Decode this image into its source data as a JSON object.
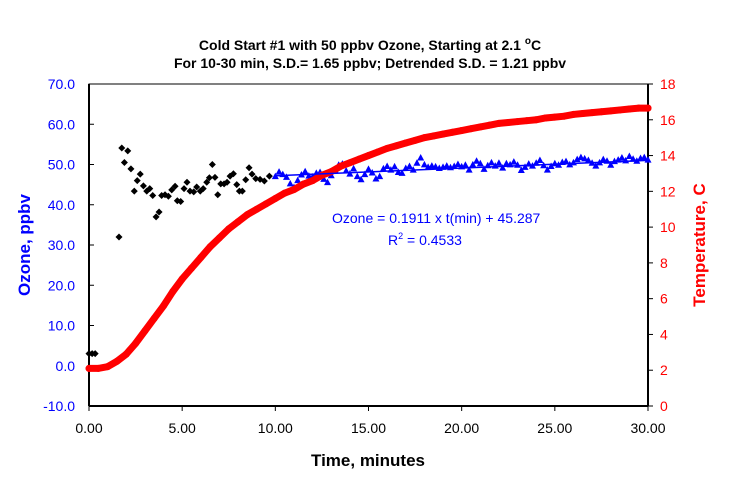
{
  "chart_data": {
    "type": "scatter",
    "title_line1": "Cold Start #1 with 50 ppbv Ozone, Starting at 2.1 ",
    "title_deg": "o",
    "title_unit": "C",
    "title_line2": "For 10-30 min, S.D.= 1.65 ppbv; Detrended  S.D. = 1.21 ppbv",
    "xlabel": "Time, minutes",
    "ylabel_left": "Ozone, ppbv",
    "ylabel_right": "Temperature, C",
    "xlim": [
      0,
      30
    ],
    "ylim_left": [
      -10,
      70
    ],
    "ylim_right": [
      0,
      18
    ],
    "x_ticks": [
      "0.00",
      "5.00",
      "10.00",
      "15.00",
      "20.00",
      "25.00",
      "30.00"
    ],
    "y_left_ticks": [
      "-10.0",
      "0.0",
      "10.0",
      "20.0",
      "30.0",
      "40.0",
      "50.0",
      "60.0",
      "70.0"
    ],
    "y_right_ticks": [
      "0",
      "2",
      "4",
      "6",
      "8",
      "10",
      "12",
      "14",
      "16",
      "18"
    ],
    "colors": {
      "ozone_early": "#000000",
      "ozone_fit": "#0000ff",
      "temperature": "#ff0000",
      "left_axis": "#0000ff",
      "right_axis": "#ff0000"
    },
    "trendline": {
      "slope": 0.1911,
      "intercept": 45.287,
      "x_range": [
        10,
        30
      ],
      "equation": "Ozone = 0.1911 x t(min) + 45.287",
      "r2_label": "R",
      "r2_sup": "2",
      "r2_value": " = 0.4533"
    },
    "series": [
      {
        "axis": "left",
        "marker": "diamond",
        "color": "#000000",
        "points": [
          [
            0,
            3.0
          ],
          [
            0.17,
            3.0
          ],
          [
            0.33,
            3.0
          ],
          [
            1.61,
            32.0
          ],
          [
            1.76,
            54.1
          ],
          [
            1.9,
            50.5
          ],
          [
            2.08,
            53.4
          ],
          [
            2.25,
            48.9
          ],
          [
            2.43,
            43.4
          ],
          [
            2.59,
            46.0
          ],
          [
            2.75,
            47.6
          ],
          [
            2.92,
            44.7
          ],
          [
            3.1,
            43.4
          ],
          [
            3.26,
            44.0
          ],
          [
            3.42,
            42.3
          ],
          [
            3.6,
            37.0
          ],
          [
            3.76,
            38.2
          ],
          [
            3.9,
            42.3
          ],
          [
            4.08,
            42.5
          ],
          [
            4.26,
            42.1
          ],
          [
            4.44,
            43.7
          ],
          [
            4.62,
            44.6
          ],
          [
            4.74,
            41.0
          ],
          [
            4.92,
            40.8
          ],
          [
            5.1,
            44.0
          ],
          [
            5.26,
            45.6
          ],
          [
            5.42,
            43.4
          ],
          [
            5.62,
            43.2
          ],
          [
            5.78,
            44.4
          ],
          [
            5.97,
            43.4
          ],
          [
            6.13,
            44.0
          ],
          [
            6.32,
            45.6
          ],
          [
            6.46,
            46.7
          ],
          [
            6.62,
            50.0
          ],
          [
            6.76,
            46.8
          ],
          [
            6.91,
            42.5
          ],
          [
            7.07,
            45.2
          ],
          [
            7.25,
            45.2
          ],
          [
            7.41,
            45.6
          ],
          [
            7.57,
            47.1
          ],
          [
            7.75,
            47.7
          ],
          [
            7.93,
            45.0
          ],
          [
            8.07,
            43.4
          ],
          [
            8.23,
            43.4
          ],
          [
            8.41,
            46.2
          ],
          [
            8.59,
            49.2
          ],
          [
            8.75,
            47.6
          ],
          [
            8.95,
            46.5
          ],
          [
            9.18,
            46.3
          ],
          [
            9.41,
            45.9
          ],
          [
            9.68,
            47.1
          ]
        ]
      },
      {
        "axis": "left",
        "marker": "triangle",
        "color": "#0000ff",
        "points": [
          [
            10.0,
            47.0
          ],
          [
            10.2,
            48.1
          ],
          [
            10.4,
            47.5
          ],
          [
            10.6,
            46.8
          ],
          [
            10.8,
            45.2
          ],
          [
            11.0,
            44.3
          ],
          [
            11.2,
            46.0
          ],
          [
            11.4,
            47.4
          ],
          [
            11.6,
            48.2
          ],
          [
            11.8,
            47.1
          ],
          [
            12.0,
            46.9
          ],
          [
            12.2,
            47.8
          ],
          [
            12.4,
            48.0
          ],
          [
            12.6,
            46.3
          ],
          [
            12.8,
            45.5
          ],
          [
            13.0,
            47.2
          ],
          [
            13.2,
            48.6
          ],
          [
            13.4,
            49.8
          ],
          [
            13.6,
            50.1
          ],
          [
            13.8,
            48.4
          ],
          [
            14.0,
            47.6
          ],
          [
            14.2,
            48.9
          ],
          [
            14.4,
            47.0
          ],
          [
            14.6,
            46.2
          ],
          [
            14.8,
            47.5
          ],
          [
            15.0,
            48.8
          ],
          [
            15.2,
            47.9
          ],
          [
            15.4,
            46.4
          ],
          [
            15.6,
            47.0
          ],
          [
            15.8,
            48.9
          ],
          [
            16.0,
            49.5
          ],
          [
            16.2,
            48.6
          ],
          [
            16.4,
            49.4
          ],
          [
            16.6,
            48.0
          ],
          [
            16.8,
            47.8
          ],
          [
            17.0,
            49.0
          ],
          [
            17.2,
            49.5
          ],
          [
            17.4,
            48.6
          ],
          [
            17.6,
            50.3
          ],
          [
            17.8,
            51.6
          ],
          [
            18.0,
            49.9
          ],
          [
            18.2,
            49.3
          ],
          [
            18.4,
            49.6
          ],
          [
            18.6,
            49.4
          ],
          [
            18.8,
            49.0
          ],
          [
            19.0,
            49.3
          ],
          [
            19.2,
            49.6
          ],
          [
            19.4,
            49.2
          ],
          [
            19.6,
            49.5
          ],
          [
            19.8,
            50.0
          ],
          [
            20.0,
            49.4
          ],
          [
            20.2,
            49.8
          ],
          [
            20.4,
            48.6
          ],
          [
            20.6,
            49.9
          ],
          [
            20.8,
            50.8
          ],
          [
            21.0,
            50.2
          ],
          [
            21.2,
            48.8
          ],
          [
            21.4,
            49.7
          ],
          [
            21.6,
            50.4
          ],
          [
            21.8,
            49.6
          ],
          [
            22.0,
            50.3
          ],
          [
            22.2,
            49.1
          ],
          [
            22.4,
            50.2
          ],
          [
            22.6,
            49.9
          ],
          [
            22.8,
            50.6
          ],
          [
            23.0,
            49.8
          ],
          [
            23.2,
            48.5
          ],
          [
            23.4,
            49.3
          ],
          [
            23.6,
            50.1
          ],
          [
            23.8,
            49.6
          ],
          [
            24.0,
            50.3
          ],
          [
            24.2,
            51.0
          ],
          [
            24.4,
            49.7
          ],
          [
            24.6,
            48.6
          ],
          [
            24.8,
            49.5
          ],
          [
            25.0,
            50.2
          ],
          [
            25.2,
            49.8
          ],
          [
            25.4,
            50.5
          ],
          [
            25.6,
            50.7
          ],
          [
            25.8,
            49.9
          ],
          [
            26.0,
            50.4
          ],
          [
            26.2,
            51.2
          ],
          [
            26.4,
            51.7
          ],
          [
            26.6,
            51.4
          ],
          [
            26.8,
            51.0
          ],
          [
            27.0,
            50.3
          ],
          [
            27.2,
            49.6
          ],
          [
            27.4,
            50.4
          ],
          [
            27.6,
            51.2
          ],
          [
            27.8,
            50.8
          ],
          [
            28.0,
            49.8
          ],
          [
            28.2,
            50.7
          ],
          [
            28.4,
            51.1
          ],
          [
            28.6,
            51.6
          ],
          [
            28.8,
            50.9
          ],
          [
            29.0,
            52.0
          ],
          [
            29.2,
            51.3
          ],
          [
            29.4,
            50.8
          ],
          [
            29.6,
            51.5
          ],
          [
            29.8,
            51.7
          ],
          [
            30.0,
            51.1
          ]
        ]
      },
      {
        "axis": "right",
        "marker": "circle",
        "color": "#ff0000",
        "points": [
          [
            0,
            2.1
          ],
          [
            0.5,
            2.1
          ],
          [
            1,
            2.2
          ],
          [
            1.5,
            2.5
          ],
          [
            2,
            2.9
          ],
          [
            2.5,
            3.5
          ],
          [
            3,
            4.2
          ],
          [
            3.5,
            4.9
          ],
          [
            4,
            5.6
          ],
          [
            4.5,
            6.4
          ],
          [
            5,
            7.1
          ],
          [
            5.5,
            7.7
          ],
          [
            6,
            8.3
          ],
          [
            6.5,
            8.9
          ],
          [
            7,
            9.4
          ],
          [
            7.5,
            9.9
          ],
          [
            8,
            10.3
          ],
          [
            8.5,
            10.7
          ],
          [
            9,
            11.0
          ],
          [
            9.5,
            11.3
          ],
          [
            10,
            11.6
          ],
          [
            10.5,
            11.9
          ],
          [
            11,
            12.1
          ],
          [
            11.5,
            12.4
          ],
          [
            12,
            12.6
          ],
          [
            12.5,
            12.9
          ],
          [
            13,
            13.1
          ],
          [
            13.5,
            13.4
          ],
          [
            14,
            13.6
          ],
          [
            14.5,
            13.8
          ],
          [
            15,
            14.0
          ],
          [
            15.5,
            14.2
          ],
          [
            16,
            14.4
          ],
          [
            16.5,
            14.55
          ],
          [
            17,
            14.7
          ],
          [
            17.5,
            14.85
          ],
          [
            18,
            15.0
          ],
          [
            18.5,
            15.1
          ],
          [
            19,
            15.2
          ],
          [
            19.5,
            15.3
          ],
          [
            20,
            15.4
          ],
          [
            20.5,
            15.5
          ],
          [
            21,
            15.6
          ],
          [
            21.5,
            15.7
          ],
          [
            22,
            15.8
          ],
          [
            22.5,
            15.85
          ],
          [
            23,
            15.9
          ],
          [
            23.5,
            15.95
          ],
          [
            24,
            16.0
          ],
          [
            24.5,
            16.1
          ],
          [
            25,
            16.15
          ],
          [
            25.5,
            16.2
          ],
          [
            26,
            16.3
          ],
          [
            26.5,
            16.35
          ],
          [
            27,
            16.4
          ],
          [
            27.5,
            16.45
          ],
          [
            28,
            16.5
          ],
          [
            28.5,
            16.55
          ],
          [
            29,
            16.6
          ],
          [
            29.5,
            16.65
          ],
          [
            30,
            16.65
          ]
        ]
      }
    ]
  }
}
